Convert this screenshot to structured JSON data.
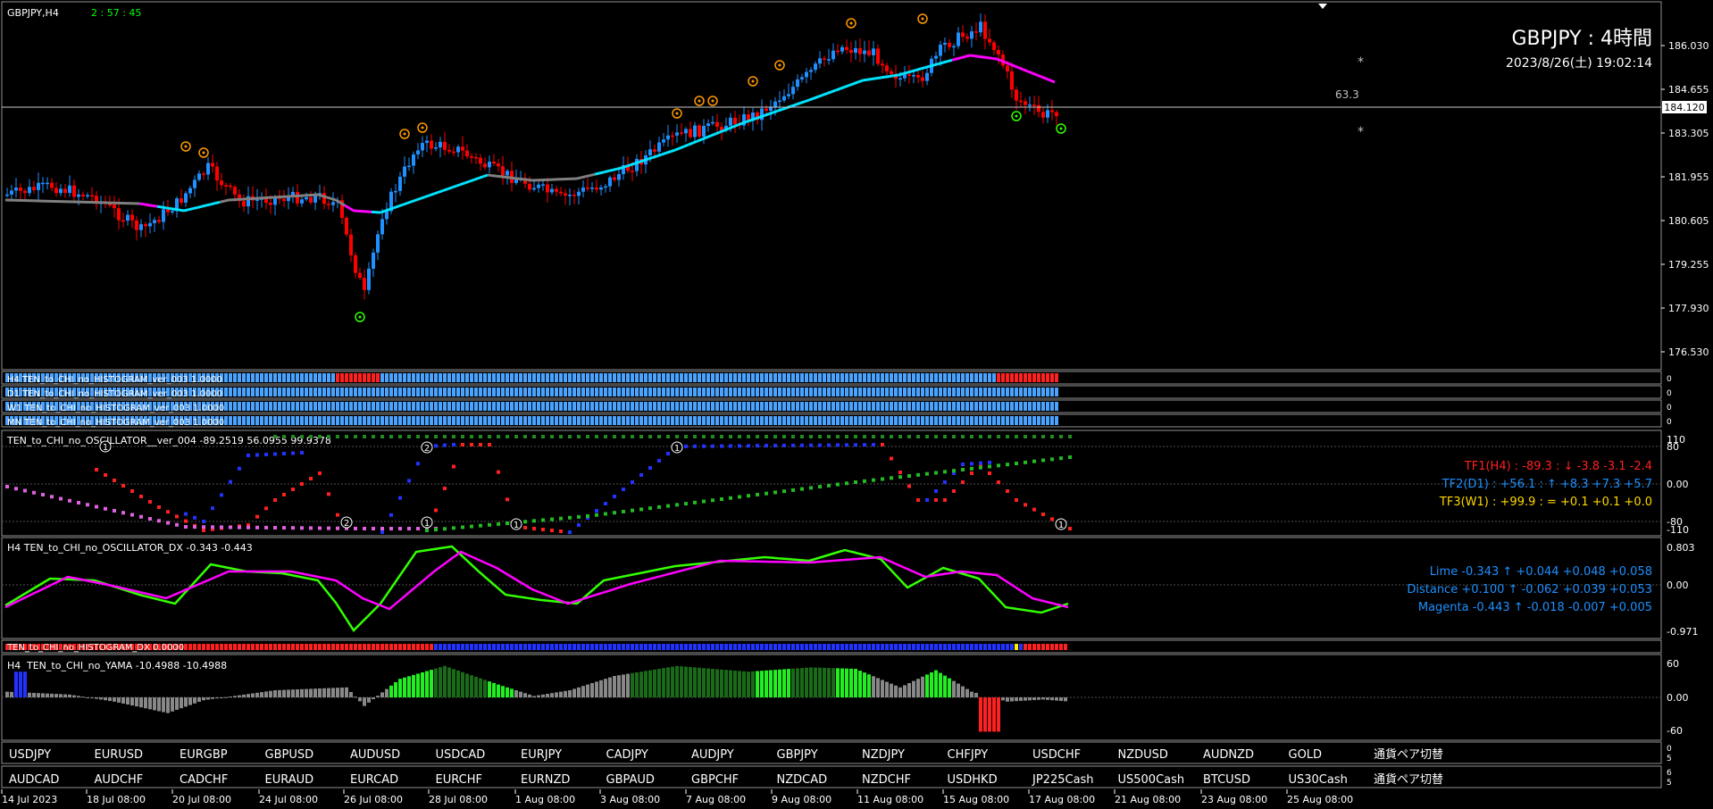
{
  "symbol_bar": {
    "symbol": "GBPJPY,H4",
    "countdown": "2 : 57 : 45"
  },
  "header": {
    "title": "GBPJPY : 4時間",
    "datetime": "2023/8/26(土) 19:02:14"
  },
  "price_axis": {
    "labels": [
      "186.030",
      "184.655",
      "183.305",
      "181.955",
      "180.605",
      "179.255",
      "177.930",
      "176.530"
    ],
    "current": "184.120",
    "side_value": "63.3",
    "star": "*"
  },
  "histograms": [
    {
      "label": "H4 TEN_to_CHI_no_HISTOGRAM_ver_003 1.0000"
    },
    {
      "label": "D1 TEN_to_CHI_no_HISTOGRAM_ver_003 1.0000"
    },
    {
      "label": "W1 TEN_to_CHI_no_HISTOGRAM_ver_003 1.0000"
    },
    {
      "label": "MN TEN_to_CHI_no_HISTOGRAM_ver_003 1.0000"
    }
  ],
  "oscillator": {
    "label": "TEN_to_CHI_no_OSCILLATOR__ver_004 -89.2519 56.0955 99.9378",
    "scale": [
      "110",
      "80",
      "0.00",
      "-80",
      "-110"
    ],
    "tf1": "TF1(H4) : -89.3 : ↓ -3.8 -3.1 -2.4",
    "tf2": "TF2(D1) : +56.1 : ↑ +8.3 +7.3 +5.7",
    "tf3": "TF3(W1) : +99.9 : = +0.1 +0.1 +0.0",
    "markers": [
      "1",
      "2",
      "2",
      "1",
      "1",
      "1",
      "1"
    ]
  },
  "dx": {
    "label": "H4 TEN_to_CHI_no_OSCILLATOR_DX -0.343 -0.443",
    "scale": [
      "0.803",
      "0.00",
      "-0.971"
    ],
    "lime": "Lime -0.343 ↑ +0.044 +0.048 +0.058",
    "distance": "Distance +0.100 ↑ -0.062 +0.039 +0.053",
    "magenta": "Magenta -0.443 ↑ -0.018 -0.007 +0.005"
  },
  "hist_dx": {
    "label": "TEN_to_CHI_no_HISTOGRAM_DX 0.0000"
  },
  "yama": {
    "prefix": "H4",
    "label": "TEN_to_CHI_no_YAMA -10.4988 -10.4988",
    "scale": [
      "60",
      "0.00",
      "-60"
    ]
  },
  "pair_buttons_row1": [
    "USDJPY",
    "EURUSD",
    "EURGBP",
    "GBPUSD",
    "AUDUSD",
    "USDCAD",
    "EURJPY",
    "CADJPY",
    "AUDJPY",
    "GBPJPY",
    "NZDJPY",
    "CHFJPY",
    "USDCHF",
    "NZDUSD",
    "AUDNZD",
    "GOLD",
    "通貨ペア切替"
  ],
  "pair_buttons_row2": [
    "AUDCAD",
    "AUDCHF",
    "CADCHF",
    "EURAUD",
    "EURCAD",
    "EURCHF",
    "EURNZD",
    "GBPAUD",
    "GBPCHF",
    "NZDCAD",
    "NZDCHF",
    "USDHKD",
    "JP225Cash",
    "US500Cash",
    "BTCUSD",
    "US30Cash",
    "通貨ペア切替"
  ],
  "row_side_marks": {
    "row1": [
      "0",
      "5"
    ],
    "row2": [
      "6",
      "5"
    ]
  },
  "time_axis": [
    "14 Jul 2023",
    "18 Jul 08:00",
    "20 Jul 08:00",
    "24 Jul 08:00",
    "26 Jul 08:00",
    "28 Jul 08:00",
    "1 Aug 08:00",
    "3 Aug 08:00",
    "7 Aug 08:00",
    "9 Aug 08:00",
    "11 Aug 08:00",
    "15 Aug 08:00",
    "17 Aug 08:00",
    "21 Aug 08:00",
    "23 Aug 08:00",
    "25 Aug 08:00"
  ],
  "colors": {
    "up": "#1e90ff",
    "down": "#ff0000",
    "cyan": "#00e5ff",
    "magenta": "#ff00ff",
    "lime": "#33ff00",
    "gray": "#808080",
    "orange": "#ff9900"
  }
}
